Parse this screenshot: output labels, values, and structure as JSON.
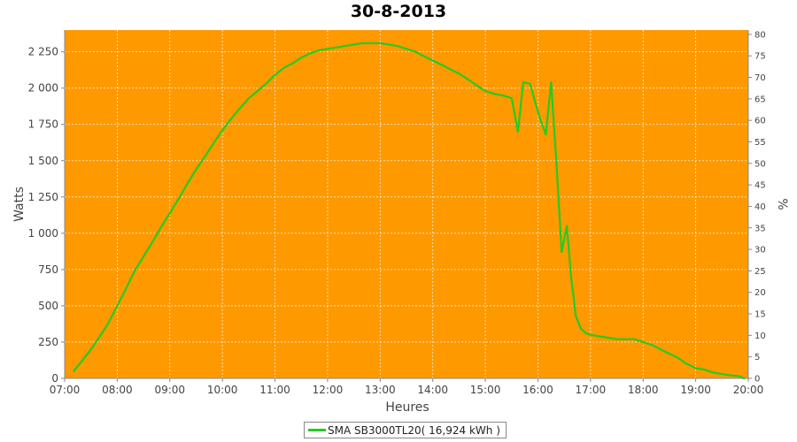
{
  "chart_data": {
    "type": "line",
    "title": "30-8-2013",
    "xlabel": "Heures",
    "ylabel": "Watts",
    "y2label": "%",
    "xlim": [
      7.0,
      20.0
    ],
    "ylim": [
      0,
      2400
    ],
    "y2lim": [
      0,
      81
    ],
    "x_ticks": [
      "07:00",
      "08:00",
      "09:00",
      "10:00",
      "11:00",
      "12:00",
      "13:00",
      "14:00",
      "15:00",
      "16:00",
      "17:00",
      "18:00",
      "19:00",
      "20:00"
    ],
    "y_ticks": [
      {
        "value": 0,
        "label": "0"
      },
      {
        "value": 250,
        "label": "250"
      },
      {
        "value": 500,
        "label": "500"
      },
      {
        "value": 750,
        "label": "750"
      },
      {
        "value": 1000,
        "label": "1 000"
      },
      {
        "value": 1250,
        "label": "1 250"
      },
      {
        "value": 1500,
        "label": "1 500"
      },
      {
        "value": 1750,
        "label": "1 750"
      },
      {
        "value": 2000,
        "label": "2 000"
      },
      {
        "value": 2250,
        "label": "2 250"
      }
    ],
    "y2_ticks": [
      "0",
      "5",
      "10",
      "15",
      "20",
      "25",
      "30",
      "35",
      "40",
      "45",
      "50",
      "55",
      "60",
      "65",
      "70",
      "75",
      "80"
    ],
    "plot_background": "#ff9900",
    "grid": true,
    "legend_position": "bottom",
    "series": [
      {
        "name": "SMA SB3000TL20( 16,924 kWh )",
        "color": "#22cc22",
        "x": [
          7.17,
          7.33,
          7.5,
          7.67,
          7.83,
          8.0,
          8.17,
          8.33,
          8.5,
          8.67,
          8.83,
          9.0,
          9.17,
          9.33,
          9.5,
          9.67,
          9.83,
          10.0,
          10.17,
          10.33,
          10.5,
          10.67,
          10.83,
          11.0,
          11.17,
          11.33,
          11.5,
          11.67,
          11.83,
          12.0,
          12.17,
          12.33,
          12.5,
          12.67,
          12.83,
          13.0,
          13.17,
          13.33,
          13.5,
          13.67,
          13.83,
          14.0,
          14.17,
          14.33,
          14.5,
          14.67,
          14.83,
          15.0,
          15.17,
          15.33,
          15.5,
          15.62,
          15.72,
          15.85,
          15.95,
          16.05,
          16.15,
          16.25,
          16.35,
          16.45,
          16.55,
          16.63,
          16.72,
          16.82,
          16.92,
          17.0,
          17.17,
          17.33,
          17.5,
          17.67,
          17.83,
          18.0,
          18.17,
          18.33,
          18.5,
          18.67,
          18.83,
          19.0,
          19.17,
          19.33,
          19.5,
          19.67,
          19.83,
          19.92
        ],
        "y": [
          50,
          120,
          200,
          290,
          380,
          500,
          620,
          740,
          840,
          940,
          1040,
          1140,
          1240,
          1340,
          1440,
          1530,
          1620,
          1710,
          1790,
          1860,
          1930,
          1980,
          2030,
          2090,
          2140,
          2170,
          2210,
          2240,
          2260,
          2270,
          2280,
          2290,
          2300,
          2310,
          2310,
          2310,
          2300,
          2290,
          2270,
          2250,
          2220,
          2190,
          2160,
          2130,
          2100,
          2060,
          2020,
          1980,
          1960,
          1950,
          1930,
          1700,
          2040,
          2030,
          1900,
          1780,
          1680,
          2040,
          1500,
          870,
          1050,
          700,
          430,
          340,
          310,
          300,
          290,
          280,
          270,
          270,
          270,
          250,
          230,
          200,
          170,
          140,
          100,
          70,
          60,
          40,
          30,
          20,
          15,
          0
        ]
      }
    ]
  }
}
